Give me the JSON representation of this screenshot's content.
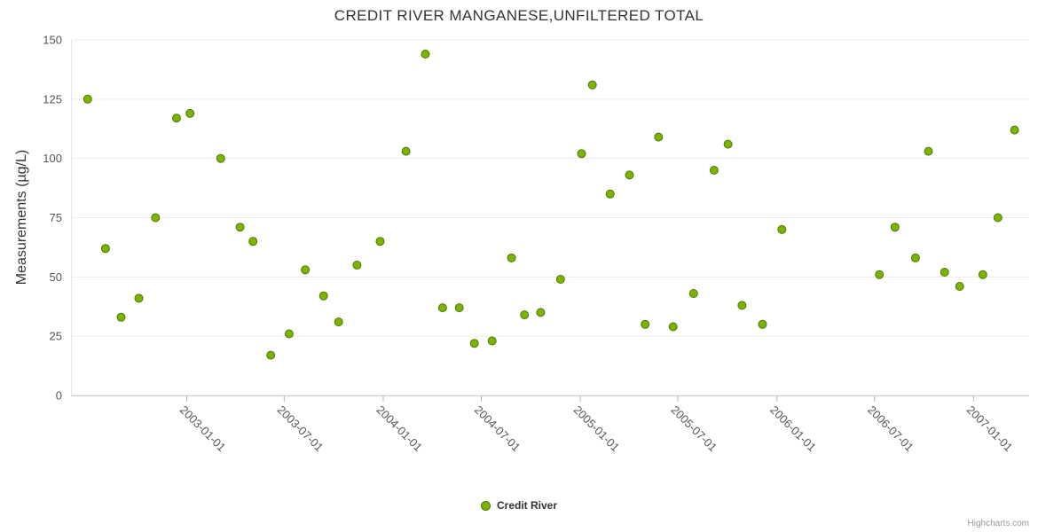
{
  "chart_data": {
    "type": "scatter",
    "title": "CREDIT RIVER MANGANESE,UNFILTERED TOTAL",
    "xlabel": "",
    "ylabel": "Measurements (µg/L)",
    "ylim": [
      0,
      150
    ],
    "yticks": [
      0,
      25,
      50,
      75,
      100,
      125,
      150
    ],
    "xlim": [
      "2002-06-01",
      "2007-04-15"
    ],
    "xticks": [
      "2003-01-01",
      "2003-07-01",
      "2004-01-01",
      "2004-07-01",
      "2005-01-01",
      "2005-07-01",
      "2006-01-01",
      "2006-07-01",
      "2007-01-01"
    ],
    "grid": true,
    "legend_position": "bottom",
    "credits": "Highcharts.com",
    "colors": {
      "point_fill": "#7cb201",
      "point_stroke": "#4e7a00",
      "axis_label": "#555555",
      "grid": "#ececec",
      "tick": "#b5b5b5",
      "x_axis_line": "#c9c9c9",
      "y_axis_line": "#e6e6e6",
      "title": "#333333"
    },
    "series": [
      {
        "name": "Credit River",
        "points": [
          {
            "date": "2002-07-02",
            "value": 125
          },
          {
            "date": "2002-08-04",
            "value": 62
          },
          {
            "date": "2002-09-02",
            "value": 33
          },
          {
            "date": "2002-10-05",
            "value": 41
          },
          {
            "date": "2002-11-05",
            "value": 75
          },
          {
            "date": "2002-12-14",
            "value": 117
          },
          {
            "date": "2003-01-08",
            "value": 119
          },
          {
            "date": "2003-03-06",
            "value": 100
          },
          {
            "date": "2003-04-11",
            "value": 71
          },
          {
            "date": "2003-05-05",
            "value": 65
          },
          {
            "date": "2003-06-07",
            "value": 17
          },
          {
            "date": "2003-07-11",
            "value": 26
          },
          {
            "date": "2003-08-10",
            "value": 53
          },
          {
            "date": "2003-09-13",
            "value": 42
          },
          {
            "date": "2003-10-11",
            "value": 31
          },
          {
            "date": "2003-11-14",
            "value": 55
          },
          {
            "date": "2003-12-27",
            "value": 65
          },
          {
            "date": "2004-02-13",
            "value": 103
          },
          {
            "date": "2004-03-20",
            "value": 144
          },
          {
            "date": "2004-04-21",
            "value": 37
          },
          {
            "date": "2004-05-22",
            "value": 37
          },
          {
            "date": "2004-06-19",
            "value": 22
          },
          {
            "date": "2004-07-22",
            "value": 23
          },
          {
            "date": "2004-08-27",
            "value": 58
          },
          {
            "date": "2004-09-20",
            "value": 34
          },
          {
            "date": "2004-10-20",
            "value": 35
          },
          {
            "date": "2004-11-26",
            "value": 49
          },
          {
            "date": "2005-01-04",
            "value": 102
          },
          {
            "date": "2005-01-24",
            "value": 131
          },
          {
            "date": "2005-02-26",
            "value": 85
          },
          {
            "date": "2005-04-03",
            "value": 93
          },
          {
            "date": "2005-05-02",
            "value": 30
          },
          {
            "date": "2005-05-27",
            "value": 109
          },
          {
            "date": "2005-06-23",
            "value": 29
          },
          {
            "date": "2005-07-31",
            "value": 43
          },
          {
            "date": "2005-09-07",
            "value": 95
          },
          {
            "date": "2005-10-03",
            "value": 106
          },
          {
            "date": "2005-10-29",
            "value": 38
          },
          {
            "date": "2005-12-06",
            "value": 30
          },
          {
            "date": "2006-01-11",
            "value": 70
          },
          {
            "date": "2006-07-11",
            "value": 51
          },
          {
            "date": "2006-08-09",
            "value": 71
          },
          {
            "date": "2006-09-16",
            "value": 58
          },
          {
            "date": "2006-10-10",
            "value": 103
          },
          {
            "date": "2006-11-09",
            "value": 52
          },
          {
            "date": "2006-12-07",
            "value": 46
          },
          {
            "date": "2007-01-19",
            "value": 51
          },
          {
            "date": "2007-02-16",
            "value": 75
          },
          {
            "date": "2007-03-19",
            "value": 112
          }
        ]
      }
    ]
  }
}
